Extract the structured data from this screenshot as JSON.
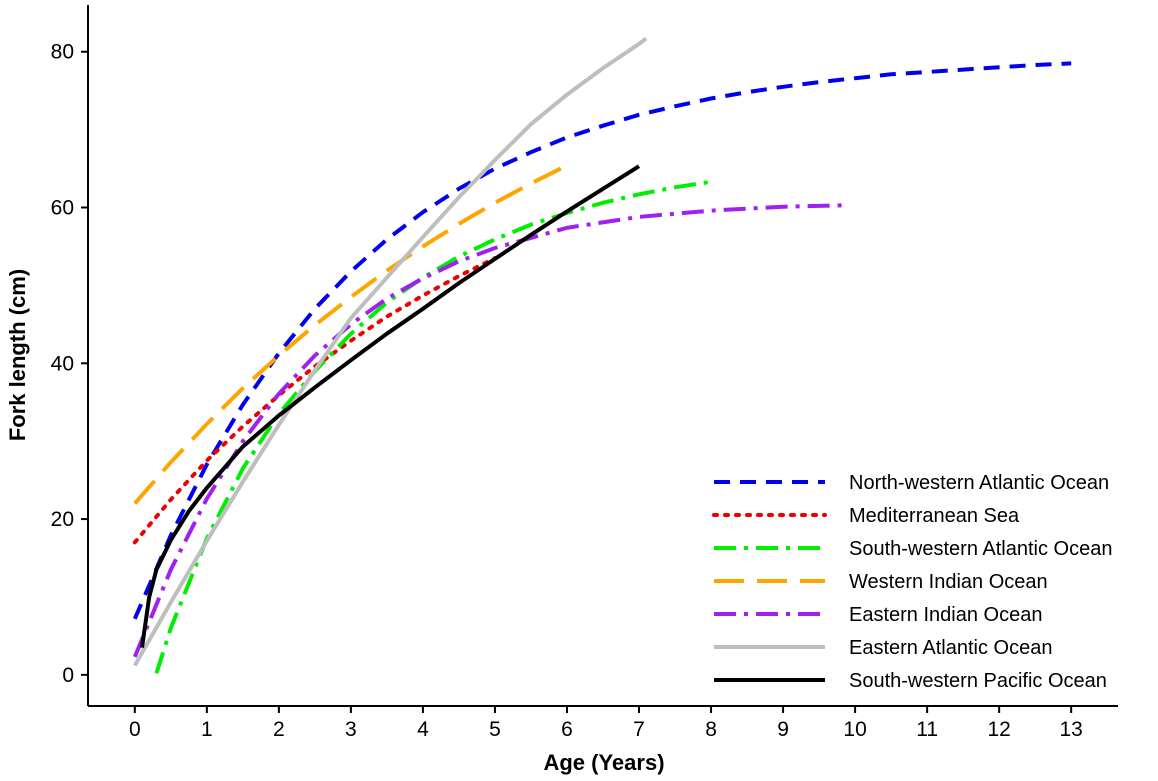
{
  "chart_data": {
    "type": "line",
    "title": "",
    "xlabel": "Age (Years)",
    "ylabel": "Fork length (cm)",
    "xlim": [
      -0.65,
      13.65
    ],
    "ylim": [
      -4,
      86
    ],
    "xticks": [
      0,
      1,
      2,
      3,
      4,
      5,
      6,
      7,
      8,
      9,
      10,
      11,
      12,
      13
    ],
    "yticks": [
      0,
      20,
      40,
      60,
      80
    ],
    "legend_position": "bottom-right",
    "series": [
      {
        "name": "North-western Atlantic Ocean",
        "color": "#0000EE",
        "style": "dashed",
        "x": [
          0,
          0.5,
          1,
          1.5,
          2,
          2.5,
          3,
          3.5,
          4,
          4.5,
          5,
          5.5,
          6,
          6.5,
          7,
          7.5,
          8,
          8.5,
          9,
          9.5,
          10,
          10.5,
          11,
          11.5,
          12,
          12.5,
          13
        ],
        "y": [
          7.2,
          17.9,
          27.0,
          34.7,
          41.3,
          47.0,
          51.8,
          55.9,
          59.4,
          62.4,
          65.0,
          67.1,
          69.0,
          70.5,
          71.9,
          73.0,
          74.0,
          74.8,
          75.5,
          76.1,
          76.6,
          77.1,
          77.4,
          77.7,
          78.0,
          78.3,
          78.5
        ]
      },
      {
        "name": "Mediterranean Sea",
        "color": "#EE0000",
        "style": "dotted",
        "x": [
          0,
          0.5,
          1,
          1.5,
          2,
          2.5,
          3,
          3.5,
          4,
          4.5,
          5
        ],
        "y": [
          17.0,
          22.5,
          27.5,
          31.9,
          35.9,
          39.6,
          42.9,
          46.0,
          48.7,
          51.2,
          53.5
        ]
      },
      {
        "name": "South-western Atlantic Ocean",
        "color": "#00EE00",
        "style": "dotdash",
        "x": [
          0.3,
          0.5,
          1,
          1.5,
          2,
          2.5,
          3,
          3.5,
          4,
          4.5,
          5,
          5.5,
          6,
          6.5,
          7,
          7.5,
          8
        ],
        "y": [
          0.2,
          6.0,
          17.5,
          26.5,
          33.5,
          39.0,
          43.8,
          47.8,
          51.0,
          53.7,
          55.9,
          57.8,
          59.3,
          60.6,
          61.7,
          62.6,
          63.3
        ]
      },
      {
        "name": "Western Indian Ocean",
        "color": "#FFA500",
        "style": "longdash",
        "x": [
          0,
          0.5,
          1,
          1.5,
          2,
          2.5,
          3,
          3.5,
          4,
          4.5,
          5,
          5.5,
          6
        ],
        "y": [
          22.0,
          27.3,
          32.2,
          36.8,
          41.0,
          44.9,
          48.5,
          51.9,
          55.0,
          57.9,
          60.6,
          63.1,
          65.4
        ]
      },
      {
        "name": "Eastern Indian Ocean",
        "color": "#A020F0",
        "style": "dotdash",
        "x": [
          0,
          0.5,
          1,
          1.5,
          2,
          2.5,
          3,
          3.5,
          4,
          4.5,
          5,
          6,
          7,
          8,
          9,
          9.9
        ],
        "y": [
          2.3,
          13.5,
          22.6,
          30.0,
          36.1,
          41.0,
          45.0,
          48.3,
          50.9,
          53.1,
          54.8,
          57.4,
          58.8,
          59.6,
          60.1,
          60.3
        ]
      },
      {
        "name": "Eastern Atlantic Ocean",
        "color": "#BEBEBE",
        "style": "solid",
        "x": [
          0,
          0.5,
          1,
          1.5,
          2,
          2.5,
          3,
          3.5,
          4,
          4.5,
          5,
          5.5,
          6,
          6.5,
          7,
          7.1
        ],
        "y": [
          1.2,
          9.3,
          17.2,
          24.8,
          32.1,
          39.1,
          45.8,
          51.0,
          56.2,
          61.3,
          66.1,
          70.7,
          74.5,
          77.9,
          81.0,
          81.7
        ]
      },
      {
        "name": "South-western Pacific Ocean",
        "color": "#000000",
        "style": "solid",
        "x": [
          0.1,
          0.2,
          0.3,
          0.5,
          0.75,
          1,
          1.5,
          2,
          2.5,
          3,
          3.5,
          4,
          4.5,
          5,
          5.5,
          6,
          6.5,
          7
        ],
        "y": [
          3.5,
          10.0,
          13.5,
          17.3,
          21.0,
          24.0,
          29.3,
          33.3,
          36.9,
          40.4,
          43.8,
          47.0,
          50.3,
          53.4,
          56.5,
          59.5,
          62.4,
          65.3
        ]
      }
    ]
  }
}
